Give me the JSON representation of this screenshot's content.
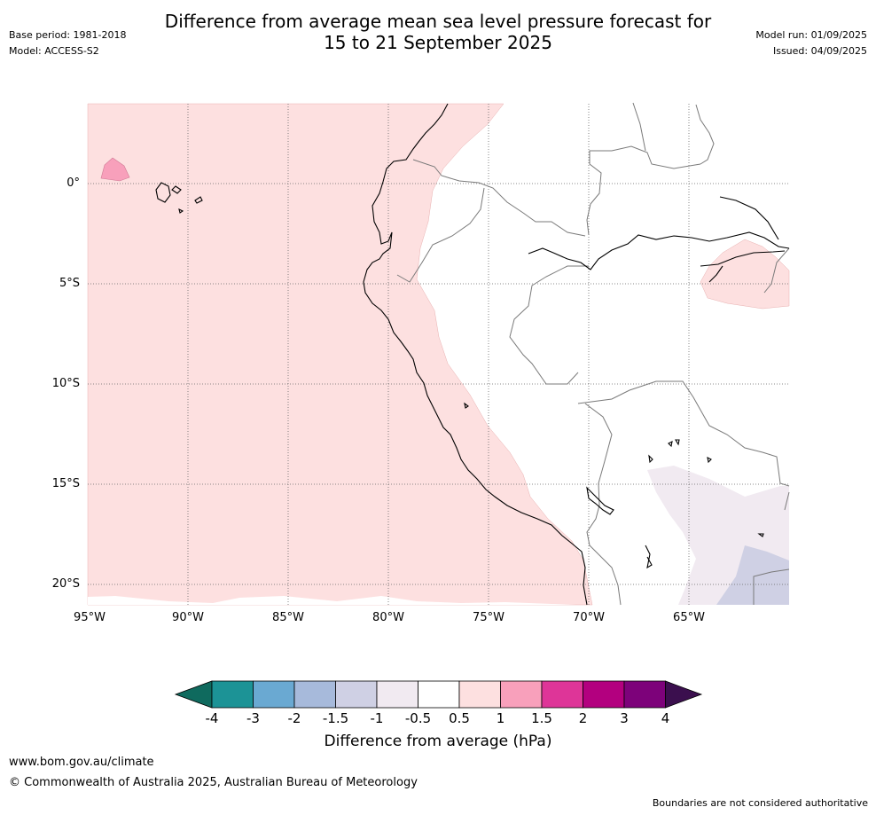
{
  "title": {
    "line1": "Difference from average mean sea level pressure forecast for",
    "line2": "15 to 21 September 2025"
  },
  "meta": {
    "base_period": "Base period: 1981-2018",
    "model": "Model: ACCESS-S2",
    "model_run": "Model run: 01/09/2025",
    "issued": "Issued: 04/09/2025"
  },
  "map": {
    "lat_labels": [
      "0°",
      "5°S",
      "10°S",
      "15°S",
      "20°S"
    ],
    "lon_labels": [
      "95°W",
      "90°W",
      "85°W",
      "80°W",
      "75°W",
      "70°W",
      "65°W"
    ],
    "colors": {
      "ocean_anomaly": "#fde0e0",
      "pos_1_1_5": "#f8a0bb",
      "neg_0_5_1": "#f1eaf1",
      "neg_1_1_5": "#cfd0e4",
      "coast": "#000000",
      "border": "#7a7a7a",
      "grid": "#666666"
    }
  },
  "colorbar": {
    "title": "Difference from average (hPa)",
    "ticks": [
      "-4",
      "-3",
      "-2",
      "-1.5",
      "-1",
      "-0.5",
      "0.5",
      "1",
      "1.5",
      "2",
      "3",
      "4"
    ],
    "low_extend_color": "#0f6a5e",
    "high_extend_color": "#3b0f4e",
    "colors": [
      "#1c9396",
      "#6aa9d2",
      "#a7badb",
      "#cfd0e4",
      "#f1eaf1",
      "#ffffff",
      "#fde0e0",
      "#f8a0bb",
      "#de3598",
      "#b3007f",
      "#7d027a"
    ]
  },
  "footer": {
    "url": "www.bom.gov.au/climate",
    "copyright": "© Commonwealth of Australia 2025, Australian Bureau of Meteorology",
    "note": "Boundaries are not considered authoritative"
  }
}
